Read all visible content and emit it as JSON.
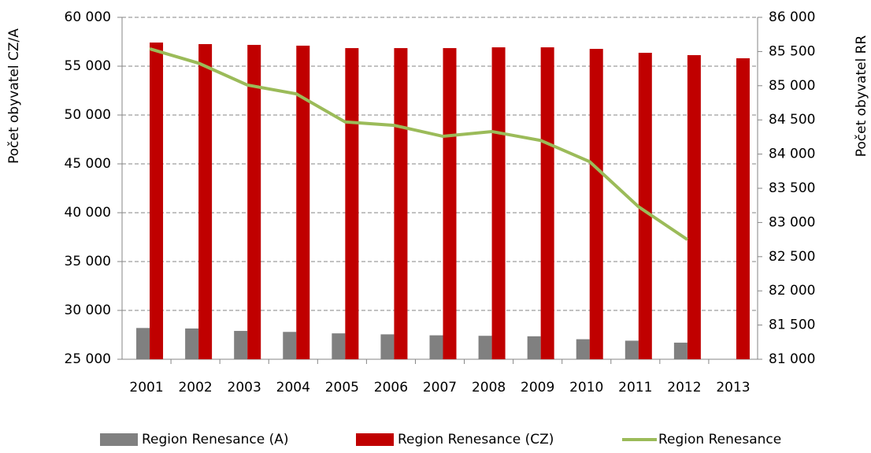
{
  "chart_data": {
    "type": "bar_line",
    "categories": [
      "2001",
      "2002",
      "2003",
      "2004",
      "2005",
      "2006",
      "2007",
      "2008",
      "2009",
      "2010",
      "2011",
      "2012",
      "2013"
    ],
    "series": [
      {
        "name": "Region Renesance (A)",
        "color": "#808080",
        "kind": "bar",
        "values": [
          28200,
          28150,
          27900,
          27800,
          27650,
          27550,
          27450,
          27400,
          27350,
          27050,
          26900,
          26700,
          null
        ]
      },
      {
        "name": "Region Renesance (CZ)",
        "color": "#c00000",
        "kind": "bar",
        "values": [
          57420,
          57260,
          57180,
          57100,
          56850,
          56850,
          56850,
          56930,
          56930,
          56770,
          56370,
          56130,
          55810
        ]
      },
      {
        "name": "Region Renesance",
        "color": "#9bbb59",
        "kind": "line",
        "axis": "y2",
        "values": [
          85540,
          85330,
          85010,
          84880,
          84470,
          84420,
          84260,
          84330,
          84200,
          83890,
          83230,
          82750,
          null
        ]
      }
    ],
    "ylabel": "Počet obyvatel CZ/A",
    "y2label": "Počet obyvatel RR",
    "ylim": [
      25000,
      60000
    ],
    "yticks": [
      {
        "value": 25000,
        "label": "25 000"
      },
      {
        "value": 30000,
        "label": "30 000"
      },
      {
        "value": 35000,
        "label": "35 000"
      },
      {
        "value": 40000,
        "label": "40 000"
      },
      {
        "value": 45000,
        "label": "45 000"
      },
      {
        "value": 50000,
        "label": "50 000"
      },
      {
        "value": 55000,
        "label": "55 000"
      },
      {
        "value": 60000,
        "label": "60 000"
      }
    ],
    "y2lim": [
      81000,
      86000
    ],
    "y2ticks": [
      {
        "value": 81000,
        "label": "81 000"
      },
      {
        "value": 81500,
        "label": "81 500"
      },
      {
        "value": 82000,
        "label": "82 000"
      },
      {
        "value": 82500,
        "label": "82 500"
      },
      {
        "value": 83000,
        "label": "83 000"
      },
      {
        "value": 83500,
        "label": "83 500"
      },
      {
        "value": 84000,
        "label": "84 000"
      },
      {
        "value": 84500,
        "label": "84 500"
      },
      {
        "value": 85000,
        "label": "85 000"
      },
      {
        "value": 85500,
        "label": "85 500"
      },
      {
        "value": 86000,
        "label": "86 000"
      }
    ],
    "grid": true,
    "legend": "bottom"
  }
}
